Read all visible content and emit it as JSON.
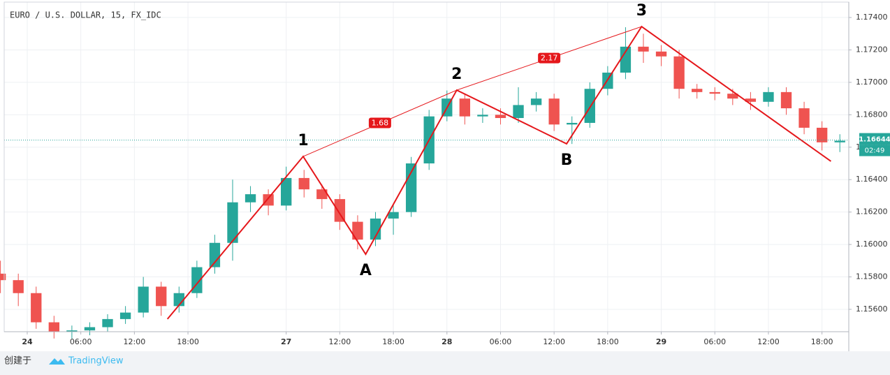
{
  "chart_data": {
    "type": "candlestick",
    "title": "EURO / U.S. DOLLAR, 15, FX_IDC",
    "x": [
      -3,
      -1,
      1,
      3,
      5,
      7,
      9,
      11,
      13,
      15,
      17,
      19,
      21,
      23,
      25,
      27,
      29,
      31,
      33,
      35,
      37,
      39,
      41,
      43,
      45,
      47,
      49,
      51,
      53,
      55,
      57,
      59,
      61,
      63,
      65,
      67,
      69,
      71,
      73,
      75,
      77,
      79,
      81,
      83,
      85,
      87,
      89,
      91
    ],
    "open": [
      1.1582,
      1.1578,
      1.157,
      1.1552,
      1.1546,
      1.1547,
      1.1549,
      1.1554,
      1.1558,
      1.1574,
      1.1562,
      1.157,
      1.1586,
      1.1601,
      1.1626,
      1.1631,
      1.1624,
      1.1641,
      1.1634,
      1.1628,
      1.1614,
      1.1603,
      1.1616,
      1.162,
      1.165,
      1.1679,
      1.169,
      1.1679,
      1.168,
      1.1678,
      1.1686,
      1.169,
      1.1674,
      1.1675,
      1.1696,
      1.1706,
      1.1722,
      1.1719,
      1.1716,
      1.1696,
      1.1694,
      1.1693,
      1.169,
      1.1688,
      1.1694,
      1.1684,
      1.1672,
      1.1663
    ],
    "high": [
      1.159,
      1.1582,
      1.1574,
      1.1556,
      1.155,
      1.1552,
      1.1557,
      1.1562,
      1.158,
      1.1577,
      1.1574,
      1.159,
      1.1606,
      1.164,
      1.1636,
      1.1634,
      1.1648,
      1.1646,
      1.1637,
      1.1631,
      1.1618,
      1.162,
      1.1625,
      1.1654,
      1.1683,
      1.1695,
      1.1693,
      1.1684,
      1.1684,
      1.1697,
      1.1694,
      1.1693,
      1.1679,
      1.17,
      1.171,
      1.1734,
      1.173,
      1.1723,
      1.172,
      1.1699,
      1.1697,
      1.1696,
      1.1694,
      1.1697,
      1.1697,
      1.1688,
      1.1676,
      1.1668
    ],
    "low": [
      1.157,
      1.1562,
      1.1548,
      1.1542,
      1.1542,
      1.1544,
      1.1546,
      1.1551,
      1.1555,
      1.1556,
      1.1558,
      1.1567,
      1.1582,
      1.159,
      1.162,
      1.1618,
      1.1621,
      1.1629,
      1.1622,
      1.1609,
      1.1597,
      1.1599,
      1.1606,
      1.1617,
      1.1646,
      1.1676,
      1.1674,
      1.1675,
      1.1674,
      1.1675,
      1.1682,
      1.167,
      1.1662,
      1.1672,
      1.1692,
      1.1702,
      1.1712,
      1.171,
      1.169,
      1.169,
      1.1689,
      1.1686,
      1.1683,
      1.1685,
      1.168,
      1.1668,
      1.1658,
      1.1657
    ],
    "close": [
      1.1578,
      1.157,
      1.1552,
      1.1546,
      1.1547,
      1.1549,
      1.1554,
      1.1558,
      1.1574,
      1.1562,
      1.157,
      1.1586,
      1.1601,
      1.1626,
      1.1631,
      1.1624,
      1.1641,
      1.1634,
      1.1628,
      1.1614,
      1.1603,
      1.1616,
      1.162,
      1.165,
      1.1679,
      1.169,
      1.1679,
      1.168,
      1.1678,
      1.1686,
      1.169,
      1.1674,
      1.1675,
      1.1696,
      1.1706,
      1.1722,
      1.1719,
      1.1716,
      1.1696,
      1.1694,
      1.1693,
      1.169,
      1.1688,
      1.1694,
      1.1684,
      1.1672,
      1.1663,
      1.1664
    ],
    "up_color": "#26a69a",
    "down_color": "#ef5350",
    "xlim": [
      -2.58,
      92.0
    ],
    "xticks": [
      {
        "value": 0,
        "label": "24"
      },
      {
        "value": 6,
        "label": "06:00"
      },
      {
        "value": 12,
        "label": "12:00"
      },
      {
        "value": 18,
        "label": "18:00"
      },
      {
        "value": 29,
        "label": "27"
      },
      {
        "value": 35,
        "label": "12:00"
      },
      {
        "value": 41,
        "label": "18:00"
      },
      {
        "value": 47,
        "label": "28"
      },
      {
        "value": 53,
        "label": "06:00"
      },
      {
        "value": 59,
        "label": "12:00"
      },
      {
        "value": 65,
        "label": "18:00"
      },
      {
        "value": 71,
        "label": "29"
      },
      {
        "value": 77,
        "label": "06:00"
      },
      {
        "value": 83,
        "label": "12:00"
      },
      {
        "value": 89,
        "label": "18:00"
      }
    ],
    "ylim": [
      1.15462,
      1.17495
    ],
    "yticks": [
      {
        "value": 1.156,
        "label": "1.15600"
      },
      {
        "value": 1.158,
        "label": "1.15800"
      },
      {
        "value": 1.16,
        "label": "1.16000"
      },
      {
        "value": 1.162,
        "label": "1.16200"
      },
      {
        "value": 1.164,
        "label": "1.16400"
      },
      {
        "value": 1.166,
        "label": "1.16600"
      },
      {
        "value": 1.168,
        "label": "1.16800"
      },
      {
        "value": 1.17,
        "label": "1.17000"
      },
      {
        "value": 1.172,
        "label": "1.17200"
      },
      {
        "value": 1.174,
        "label": "1.17400"
      }
    ],
    "grid": true,
    "pattern": {
      "color": "#e5171b",
      "x": [
        15.7,
        30.9,
        37.9,
        48.1,
        60.4,
        68.8,
        90.0
      ],
      "y": [
        1.1554,
        1.16543,
        1.1594,
        1.16952,
        1.16621,
        1.17344,
        1.16513
      ],
      "labels": [
        null,
        "1",
        "A",
        "2",
        "B",
        "3",
        null
      ]
    },
    "ratio_lines": [
      {
        "x": [
          30.9,
          48.1
        ],
        "y": [
          1.16543,
          1.16952
        ],
        "value": 1.68
      },
      {
        "x": [
          48.1,
          68.8
        ],
        "y": [
          1.16952,
          1.17344
        ],
        "value": 2.17
      }
    ],
    "last_price": 1.16644,
    "countdown": "02:49",
    "created_by": "创建于",
    "brand": "TradingView"
  }
}
